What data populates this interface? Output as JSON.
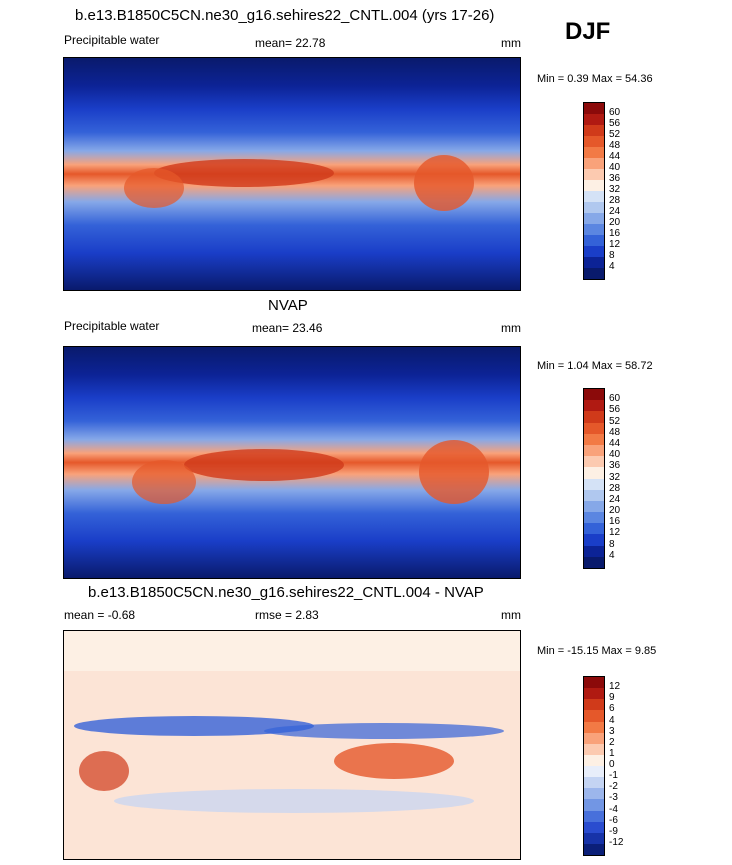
{
  "season": "DJF",
  "panels": [
    {
      "title": "b.e13.B1850C5CN.ne30_g16.sehires22_CNTL.004 (yrs 17-26)",
      "left_label": "Precipitable water",
      "mean_text": "mean=  22.78",
      "units": "mm",
      "range_text": "Min =   0.39 Max =  54.36",
      "colorbar": {
        "labels": [
          "60",
          "56",
          "52",
          "48",
          "44",
          "40",
          "36",
          "32",
          "28",
          "24",
          "20",
          "16",
          "12",
          "8",
          "4"
        ],
        "colors": [
          "#8b0a0a",
          "#b01a12",
          "#d03a1a",
          "#e5582a",
          "#f27a45",
          "#f9a27a",
          "#fccab0",
          "#fdf0e4",
          "#d4e2f6",
          "#b0c8ef",
          "#86a8e8",
          "#5b86e1",
          "#3462d8",
          "#1a3ec8",
          "#0c2396",
          "#091a6c"
        ]
      }
    },
    {
      "title": "NVAP",
      "left_label": "Precipitable water",
      "mean_text": "mean=  23.46",
      "units": "mm",
      "range_text": "Min =   1.04 Max =  58.72",
      "colorbar": {
        "labels": [
          "60",
          "56",
          "52",
          "48",
          "44",
          "40",
          "36",
          "32",
          "28",
          "24",
          "20",
          "16",
          "12",
          "8",
          "4"
        ],
        "colors": [
          "#8b0a0a",
          "#b01a12",
          "#d03a1a",
          "#e5582a",
          "#f27a45",
          "#f9a27a",
          "#fccab0",
          "#fdf0e4",
          "#d4e2f6",
          "#b0c8ef",
          "#86a8e8",
          "#5b86e1",
          "#3462d8",
          "#1a3ec8",
          "#0c2396",
          "#091a6c"
        ]
      }
    },
    {
      "title": "b.e13.B1850C5CN.ne30_g16.sehires22_CNTL.004 - NVAP",
      "mean_text": "mean =  -0.68",
      "rmse_text": "rmse =   2.83",
      "units": "mm",
      "range_text": "Min = -15.15 Max =    9.85",
      "colorbar": {
        "labels": [
          "12",
          "9",
          "6",
          "4",
          "3",
          "2",
          "1",
          "0",
          "-1",
          "-2",
          "-3",
          "-4",
          "-6",
          "-9",
          "-12"
        ],
        "colors": [
          "#8b0a0a",
          "#b01a12",
          "#d03a1a",
          "#e5582a",
          "#f27a45",
          "#f9a27a",
          "#fccab0",
          "#fdf0e4",
          "#e8eefa",
          "#c4d4f3",
          "#9cb6ec",
          "#7296e4",
          "#4870db",
          "#2a4ccf",
          "#1733a8",
          "#0b1f78"
        ]
      }
    }
  ]
}
